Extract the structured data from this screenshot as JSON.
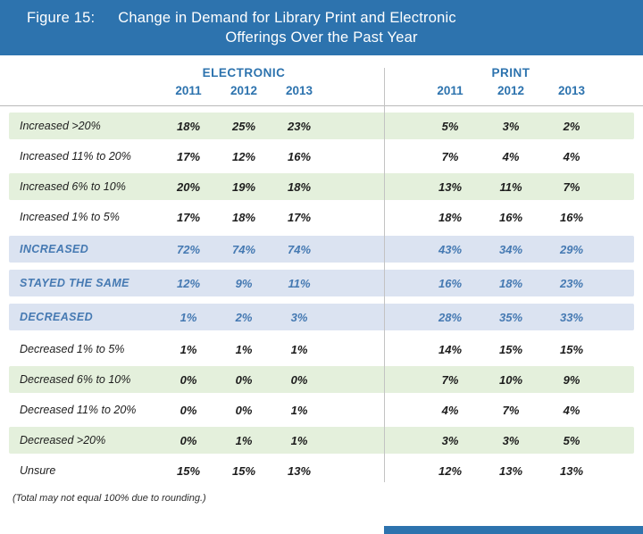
{
  "figure": {
    "label": "Figure 15:",
    "title_line1": "Change in Demand for Library Print and Electronic",
    "title_line2": "Offerings Over the Past Year"
  },
  "chart_data": {
    "type": "table",
    "title": "Change in Demand for Library Print and Electronic Offerings Over the Past Year",
    "column_groups": [
      "ELECTRONIC",
      "PRINT"
    ],
    "years": [
      "2011",
      "2012",
      "2013"
    ],
    "rows": [
      {
        "label": "Increased >20%",
        "electronic": [
          "18%",
          "25%",
          "23%"
        ],
        "print": [
          "5%",
          "3%",
          "2%"
        ]
      },
      {
        "label": "Increased 11% to 20%",
        "electronic": [
          "17%",
          "12%",
          "16%"
        ],
        "print": [
          "7%",
          "4%",
          "4%"
        ]
      },
      {
        "label": "Increased 6% to 10%",
        "electronic": [
          "20%",
          "19%",
          "18%"
        ],
        "print": [
          "13%",
          "11%",
          "7%"
        ]
      },
      {
        "label": "Increased 1% to 5%",
        "electronic": [
          "17%",
          "18%",
          "17%"
        ],
        "print": [
          "18%",
          "16%",
          "16%"
        ]
      },
      {
        "label": "INCREASED",
        "electronic": [
          "72%",
          "74%",
          "74%"
        ],
        "print": [
          "43%",
          "34%",
          "29%"
        ]
      },
      {
        "label": "STAYED THE SAME",
        "electronic": [
          "12%",
          "9%",
          "11%"
        ],
        "print": [
          "16%",
          "18%",
          "23%"
        ]
      },
      {
        "label": "DECREASED",
        "electronic": [
          "1%",
          "2%",
          "3%"
        ],
        "print": [
          "28%",
          "35%",
          "33%"
        ]
      },
      {
        "label": "Decreased 1% to 5%",
        "electronic": [
          "1%",
          "1%",
          "1%"
        ],
        "print": [
          "14%",
          "15%",
          "15%"
        ]
      },
      {
        "label": "Decreased 6% to 10%",
        "electronic": [
          "0%",
          "0%",
          "0%"
        ],
        "print": [
          "7%",
          "10%",
          "9%"
        ]
      },
      {
        "label": "Decreased 11% to 20%",
        "electronic": [
          "0%",
          "0%",
          "1%"
        ],
        "print": [
          "4%",
          "7%",
          "4%"
        ]
      },
      {
        "label": "Decreased >20%",
        "electronic": [
          "0%",
          "1%",
          "1%"
        ],
        "print": [
          "3%",
          "3%",
          "5%"
        ]
      },
      {
        "label": "Unsure",
        "electronic": [
          "15%",
          "15%",
          "13%"
        ],
        "print": [
          "12%",
          "13%",
          "13%"
        ]
      }
    ]
  },
  "footnote": "(Total may not equal 100% due to rounding.)",
  "colors": {
    "header_bar_blue": "#2d73ae",
    "green_row": "#e4f0dc",
    "summary_row_blue": "#dbe3f1",
    "summary_text_blue": "#4579b2",
    "header_text_blue": "#2d73ae"
  }
}
